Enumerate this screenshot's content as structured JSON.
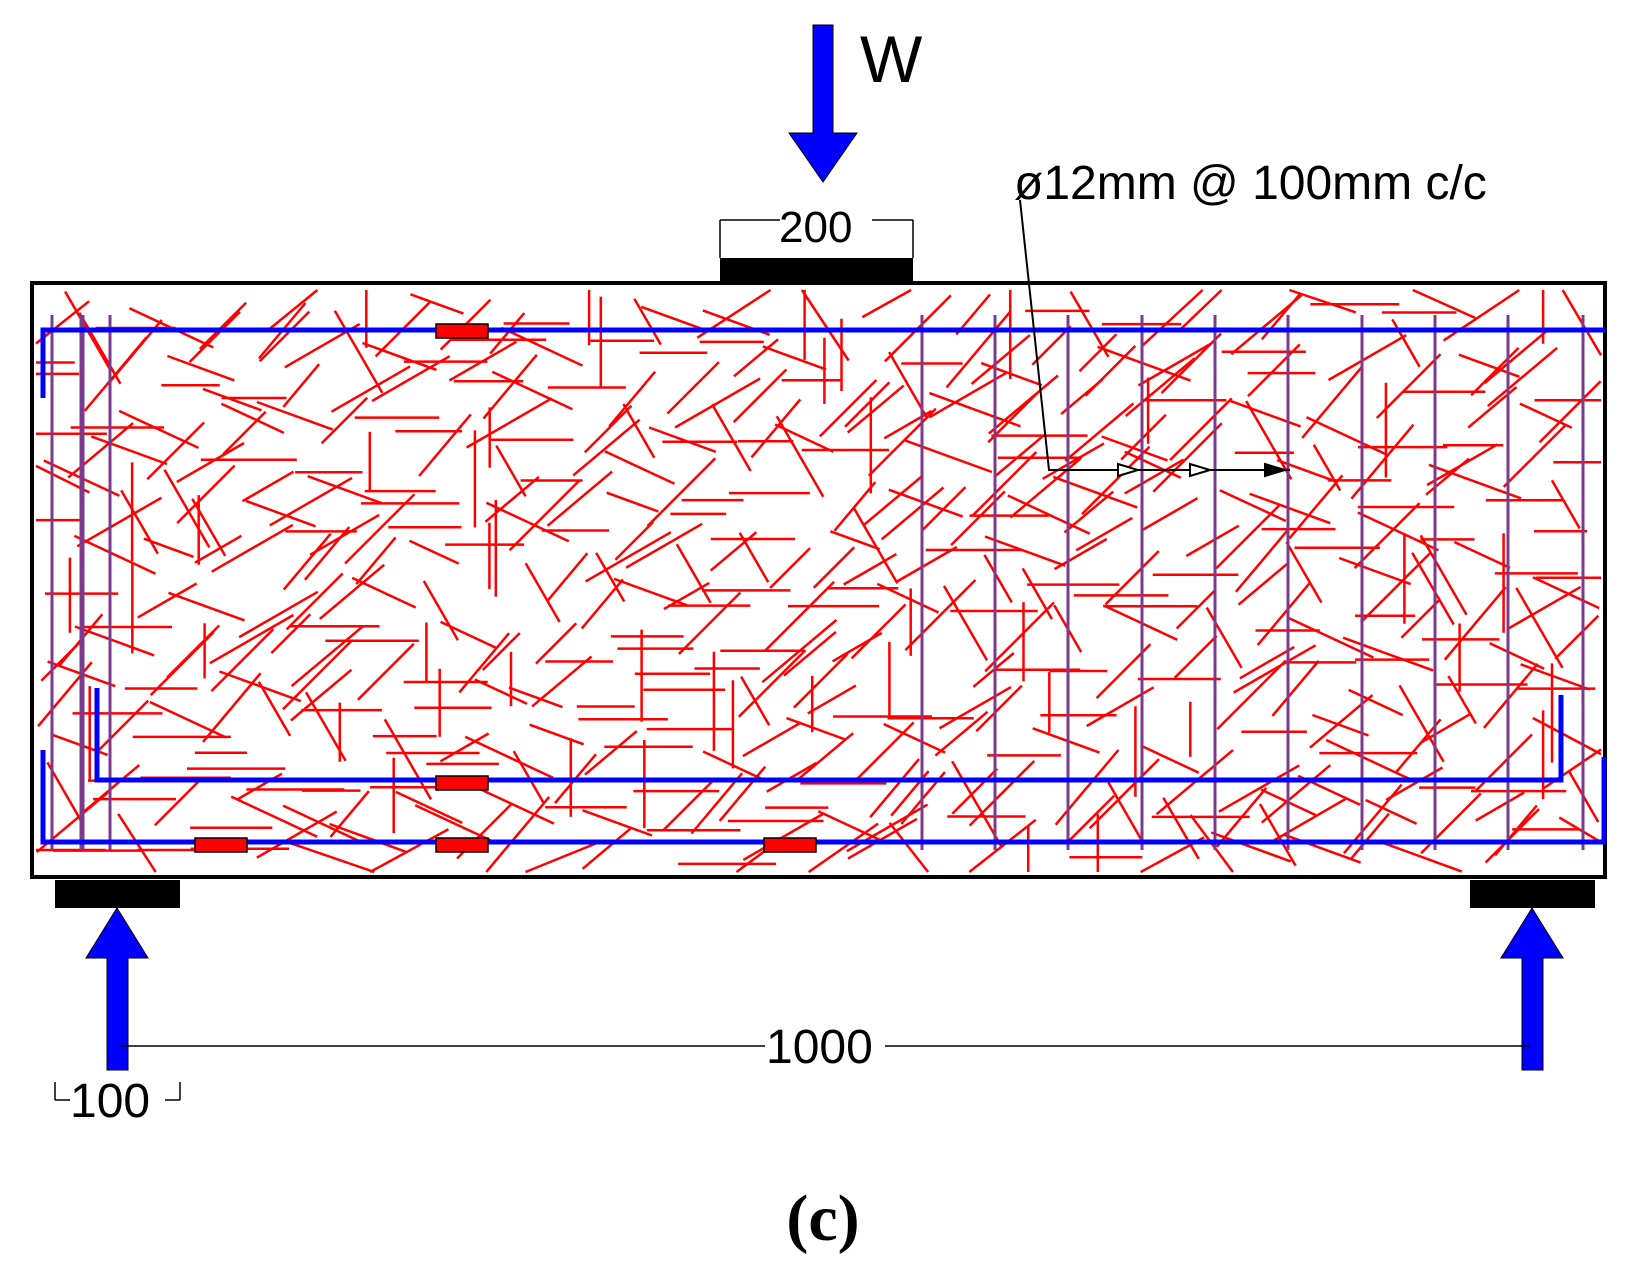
{
  "labels": {
    "load": "W",
    "bearing_width": "200",
    "stirrup_spec": "ø12mm @ 100mm c/c",
    "span": "1000",
    "support_width": "100",
    "caption": "(c)"
  },
  "colors": {
    "fiber": "#ff0000",
    "rebar": "#0000ff",
    "stirrup": "#7b3a8c",
    "arrow": "#0000ff",
    "outline": "#000000",
    "strain_gauge": "#ff0000"
  }
}
